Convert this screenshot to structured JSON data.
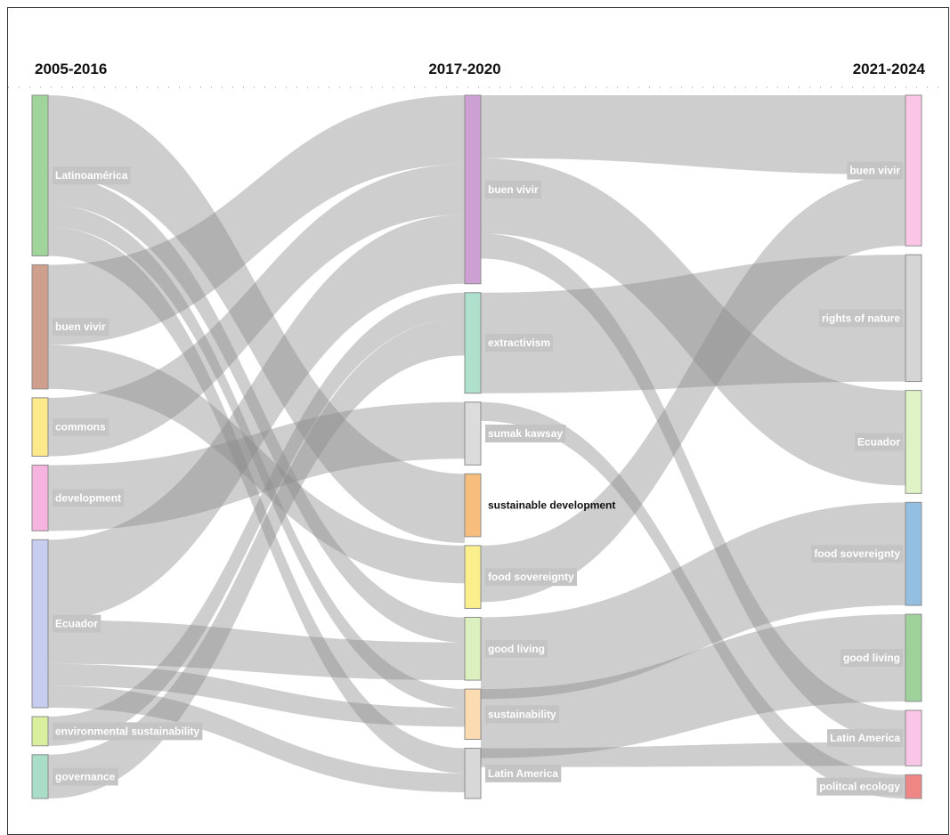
{
  "chart_data": {
    "type": "sankey",
    "columns": [
      {
        "title": "2005-2016",
        "nodes": [
          {
            "id": "a_latino",
            "label": "Latinoamérica",
            "color": "#9fd49a",
            "value": 22
          },
          {
            "id": "a_buen",
            "label": "buen vivir",
            "color": "#cf9f8e",
            "value": 17
          },
          {
            "id": "a_commons",
            "label": "commons",
            "color": "#fbe98c",
            "value": 8
          },
          {
            "id": "a_dev",
            "label": "development",
            "color": "#f6b3de",
            "value": 9
          },
          {
            "id": "a_ecuador",
            "label": "Ecuador",
            "color": "#c6cdef",
            "value": 23
          },
          {
            "id": "a_env",
            "label": "environmental sustainability",
            "color": "#daef9e",
            "value": 4
          },
          {
            "id": "a_gov",
            "label": "governance",
            "color": "#a9ddc8",
            "value": 6
          }
        ]
      },
      {
        "title": "2017-2020",
        "nodes": [
          {
            "id": "b_buen",
            "label": "buen vivir",
            "color": "#cda0d4",
            "value": 30
          },
          {
            "id": "b_extr",
            "label": "extractivism",
            "color": "#aee0cc",
            "value": 16
          },
          {
            "id": "b_sumak",
            "label": "sumak kawsay",
            "color": "#dcdcdc",
            "value": 10
          },
          {
            "id": "b_sust",
            "label": "sustainable development",
            "color": "#f6bd7c",
            "value": 10,
            "dark": true
          },
          {
            "id": "b_food",
            "label": "food sovereignty",
            "color": "#fbee8c",
            "value": 10
          },
          {
            "id": "b_good",
            "label": "good living",
            "color": "#dcefbe",
            "value": 10
          },
          {
            "id": "b_susty",
            "label": "sustainability",
            "color": "#fbdcb2",
            "value": 8
          },
          {
            "id": "b_latin",
            "label": "Latin America",
            "color": "#d8d8d8",
            "value": 8
          }
        ]
      },
      {
        "title": "2021-2024",
        "nodes": [
          {
            "id": "c_buen",
            "label": "buen vivir",
            "color": "#fbc6e6",
            "value": 19
          },
          {
            "id": "c_rights",
            "label": "rights of nature",
            "color": "#d5d5d5",
            "value": 16
          },
          {
            "id": "c_ecuador",
            "label": "Ecuador",
            "color": "#dff3c6",
            "value": 13
          },
          {
            "id": "c_food",
            "label": "food sovereignty",
            "color": "#93bfe2",
            "value": 13
          },
          {
            "id": "c_good",
            "label": "good living",
            "color": "#9ed29a",
            "value": 11
          },
          {
            "id": "c_latin",
            "label": "Latin America",
            "color": "#f9c6e8",
            "value": 7
          },
          {
            "id": "c_pol",
            "label": "politcal ecology",
            "color": "#ee8686",
            "value": 3
          }
        ]
      }
    ],
    "links": [
      {
        "source": "a_latino",
        "target": "b_sust",
        "value": 11
      },
      {
        "source": "a_latino",
        "target": "b_good",
        "value": 4
      },
      {
        "source": "a_latino",
        "target": "b_susty",
        "value": 3
      },
      {
        "source": "a_latino",
        "target": "b_latin",
        "value": 4
      },
      {
        "source": "a_buen",
        "target": "b_buen",
        "value": 11
      },
      {
        "source": "a_buen",
        "target": "b_food",
        "value": 6
      },
      {
        "source": "a_commons",
        "target": "b_buen",
        "value": 8
      },
      {
        "source": "a_dev",
        "target": "b_sumak",
        "value": 9
      },
      {
        "source": "a_ecuador",
        "target": "b_buen",
        "value": 11
      },
      {
        "source": "a_ecuador",
        "target": "b_good",
        "value": 6
      },
      {
        "source": "a_ecuador",
        "target": "b_susty",
        "value": 3
      },
      {
        "source": "a_ecuador",
        "target": "b_latin",
        "value": 3
      },
      {
        "source": "a_env",
        "target": "b_extr",
        "value": 4
      },
      {
        "source": "a_gov",
        "target": "b_extr",
        "value": 6
      },
      {
        "source": "b_buen",
        "target": "c_buen",
        "value": 10
      },
      {
        "source": "b_buen",
        "target": "c_ecuador",
        "value": 12
      },
      {
        "source": "b_buen",
        "target": "c_latin",
        "value": 4
      },
      {
        "source": "b_extr",
        "target": "c_rights",
        "value": 16
      },
      {
        "source": "b_sumak",
        "target": "c_pol",
        "value": 3
      },
      {
        "source": "b_food",
        "target": "c_buen",
        "value": 9
      },
      {
        "source": "b_good",
        "target": "c_food",
        "value": 13
      },
      {
        "source": "b_susty",
        "target": "c_good",
        "value": 11
      },
      {
        "source": "b_latin",
        "target": "c_latin",
        "value": 3
      }
    ]
  }
}
